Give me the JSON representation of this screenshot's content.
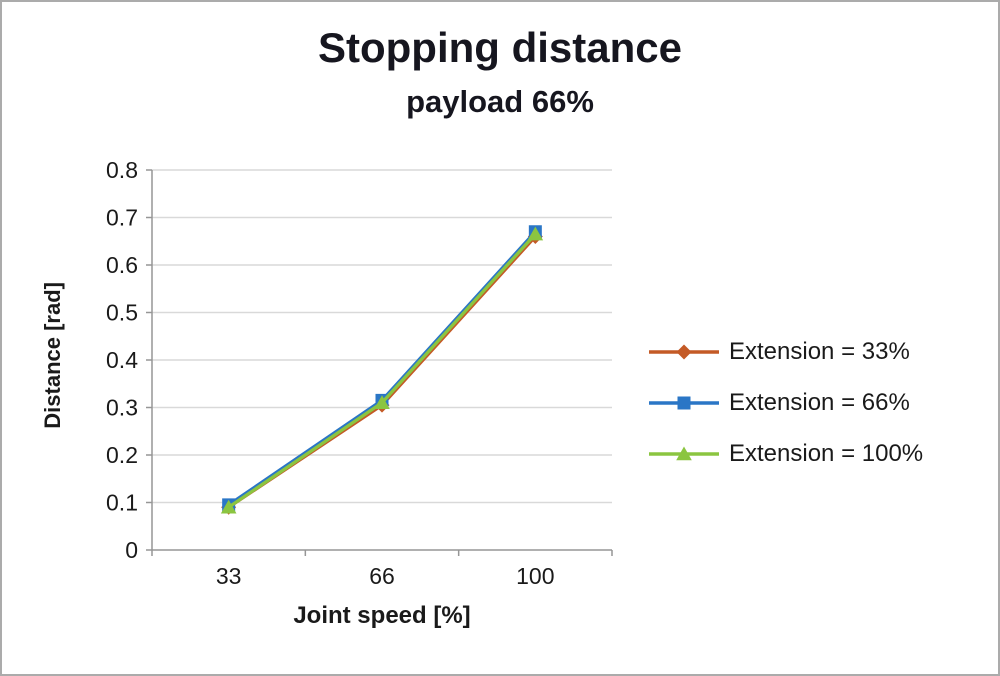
{
  "title": "Stopping distance",
  "subtitle": "payload 66%",
  "colors": {
    "background": "#ffffff",
    "border": "#ababab",
    "grid": "#d9d9d9",
    "axis": "#969696",
    "text": "#1a1a1a",
    "title_text": "#16161f"
  },
  "chart_data": {
    "type": "line",
    "categories": [
      "33",
      "66",
      "100"
    ],
    "x_values": [
      33,
      66,
      100
    ],
    "xlabel": "Joint speed [%]",
    "ylabel": "Distance [rad]",
    "ylim": [
      0,
      0.8
    ],
    "ytick_step": 0.1,
    "yticks": [
      "0",
      "0.1",
      "0.2",
      "0.3",
      "0.4",
      "0.5",
      "0.6",
      "0.7",
      "0.8"
    ],
    "grid": true,
    "legend_position": "right",
    "series": [
      {
        "name": "Extension = 33%",
        "color": "#c45a26",
        "marker": "diamond",
        "values": [
          0.09,
          0.305,
          0.66
        ]
      },
      {
        "name": "Extension = 66%",
        "color": "#2a76c6",
        "marker": "square",
        "values": [
          0.095,
          0.315,
          0.67
        ]
      },
      {
        "name": "Extension = 100%",
        "color": "#8bc540",
        "marker": "triangle",
        "values": [
          0.09,
          0.31,
          0.665
        ]
      }
    ]
  }
}
